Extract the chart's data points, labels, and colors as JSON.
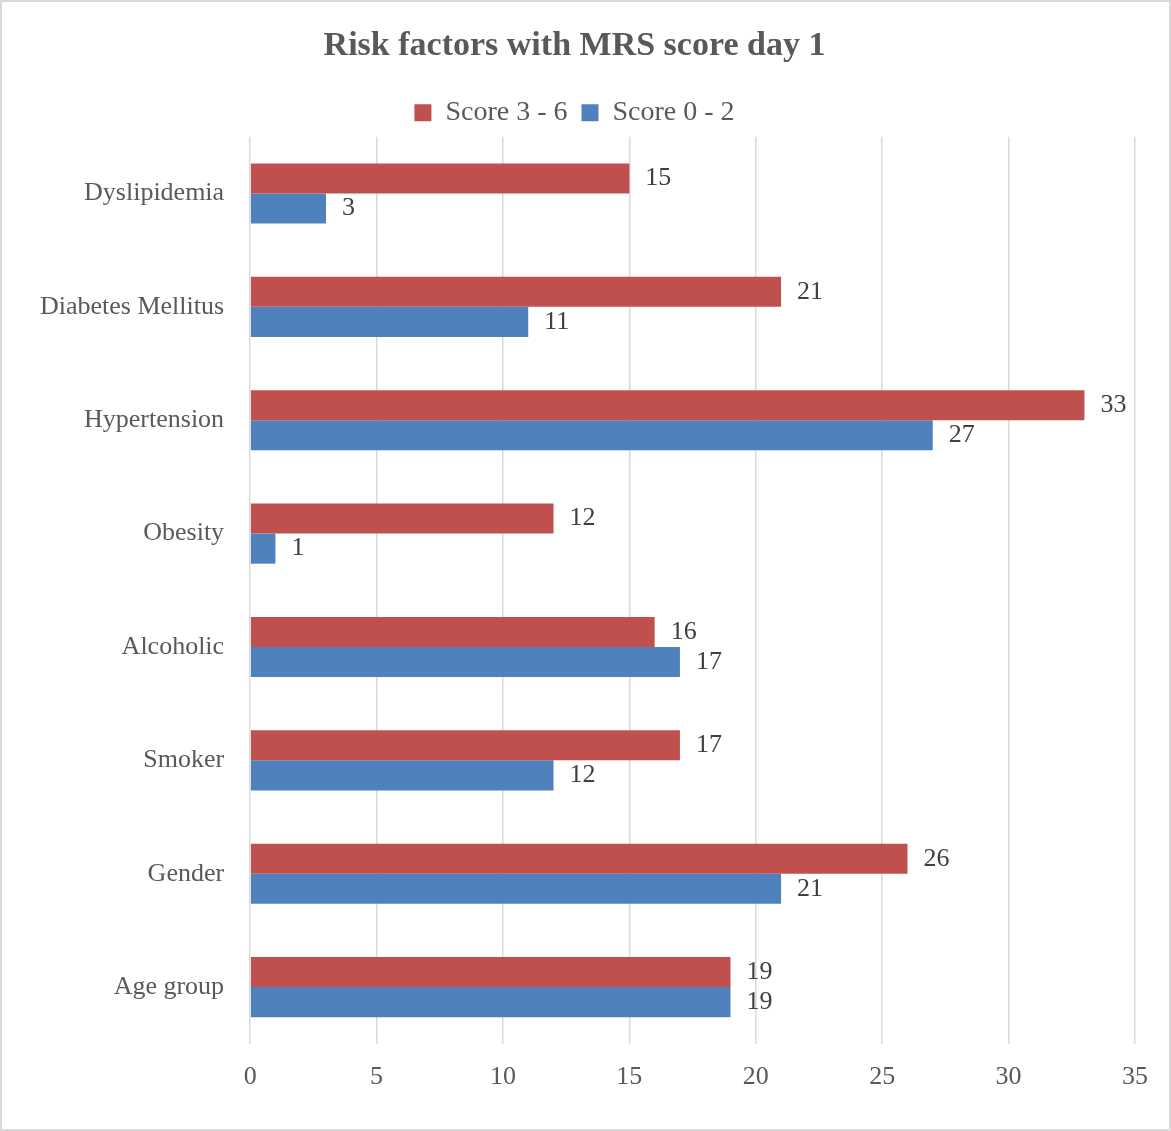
{
  "chart_data": {
    "type": "bar",
    "orientation": "horizontal",
    "title": "Risk factors with MRS score day 1",
    "categories": [
      "Dyslipidemia",
      "Diabetes Mellitus",
      "Hypertension",
      "Obesity",
      "Alcoholic",
      "Smoker",
      "Gender",
      "Age group"
    ],
    "series": [
      {
        "name": "Score 3 - 6",
        "color": "#c0504d",
        "values": [
          15,
          21,
          33,
          12,
          16,
          17,
          26,
          19
        ]
      },
      {
        "name": "Score 0 - 2",
        "color": "#4f81bd",
        "values": [
          3,
          11,
          27,
          1,
          17,
          12,
          21,
          19
        ]
      }
    ],
    "xlim": [
      0,
      35
    ],
    "xticks": [
      0,
      5,
      10,
      15,
      20,
      25,
      30,
      35
    ],
    "grid": "x",
    "legend": "top",
    "data_labels": true
  }
}
